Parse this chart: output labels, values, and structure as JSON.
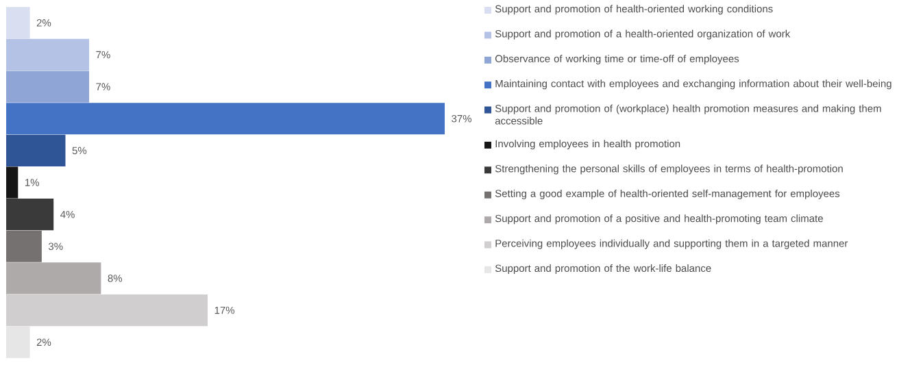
{
  "chart_data": {
    "type": "bar",
    "orientation": "horizontal",
    "categories": [
      null
    ],
    "legend": "right",
    "series": [
      {
        "name": "Support and promotion of health-oriented working conditions",
        "color": "#d9dff0",
        "values": [
          2
        ],
        "value_labels": [
          "2%"
        ]
      },
      {
        "name": "Support and promotion of a health-oriented organization of work",
        "color": "#b4c3e5",
        "values": [
          7
        ],
        "value_labels": [
          "7%"
        ]
      },
      {
        "name": "Observance of working time or time-off of employees",
        "color": "#8fa5d6",
        "values": [
          7
        ],
        "value_labels": [
          "7%"
        ]
      },
      {
        "name": "Maintaining contact with employees and exchanging information about their well-being",
        "color": "#4472c4",
        "values": [
          37
        ],
        "value_labels": [
          "37%"
        ]
      },
      {
        "name": "Support and promotion of (workplace) health promotion measures and making them accessible",
        "color": "#2f5597",
        "values": [
          5
        ],
        "value_labels": [
          "5%"
        ]
      },
      {
        "name": "Involving employees in health promotion",
        "color": "#161616",
        "values": [
          1
        ],
        "value_labels": [
          "1%"
        ]
      },
      {
        "name": "Strengthening the personal skills of employees in terms of health-promotion",
        "color": "#3a3a3a",
        "values": [
          4
        ],
        "value_labels": [
          "4%"
        ]
      },
      {
        "name": "Setting a good example of health-oriented self-management for employees",
        "color": "#767171",
        "values": [
          3
        ],
        "value_labels": [
          "3%"
        ]
      },
      {
        "name": "Support and promotion of a positive and health-promoting team climate",
        "color": "#aeaaaa",
        "values": [
          8
        ],
        "value_labels": [
          "8%"
        ]
      },
      {
        "name": "Perceiving employees individually and supporting them in a targeted manner",
        "color": "#d0cece",
        "values": [
          17
        ],
        "value_labels": [
          "17%"
        ]
      },
      {
        "name": "Support and promotion of the work-life balance",
        "color": "#e7e6e6",
        "values": [
          2
        ],
        "value_labels": [
          "2%"
        ]
      }
    ]
  }
}
